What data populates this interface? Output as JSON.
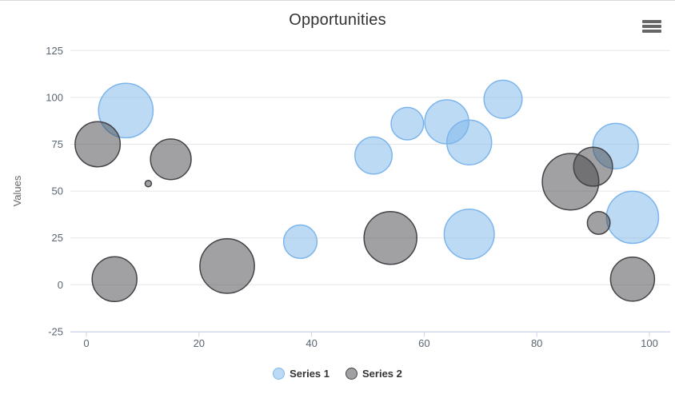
{
  "chart_data": {
    "type": "bubble",
    "title": "Opportunities",
    "xlabel": "",
    "ylabel": "Values",
    "x_ticks": [
      0,
      20,
      40,
      60,
      80,
      100
    ],
    "y_ticks": [
      -25,
      0,
      25,
      50,
      75,
      100,
      125
    ],
    "xlim": [
      -3,
      103.5
    ],
    "ylim": [
      -25,
      125
    ],
    "grid": "horizontal-gridlines-only",
    "legend_position": "bottom-center",
    "point_format": "[x, y, z] where z scales bubble area",
    "series": [
      {
        "name": "Series 1",
        "color": "#7cb5ec",
        "fill_opacity": 0.5,
        "data": [
          [
            97,
            36,
            79
          ],
          [
            94,
            74,
            60
          ],
          [
            68,
            76,
            58
          ],
          [
            64,
            87,
            56
          ],
          [
            68,
            27,
            73
          ],
          [
            74,
            99,
            42
          ],
          [
            7,
            93,
            87
          ],
          [
            51,
            69,
            40
          ],
          [
            38,
            23,
            33
          ],
          [
            57,
            86,
            31
          ]
        ]
      },
      {
        "name": "Series 2",
        "color": "#434348",
        "fill_opacity": 0.5,
        "data": [
          [
            25,
            10,
            87
          ],
          [
            2,
            75,
            59
          ],
          [
            11,
            54,
            8
          ],
          [
            86,
            55,
            93
          ],
          [
            5,
            3,
            58
          ],
          [
            90,
            63,
            44
          ],
          [
            91,
            33,
            17
          ],
          [
            97,
            3,
            56
          ],
          [
            15,
            67,
            48
          ],
          [
            54,
            25,
            81
          ]
        ]
      }
    ]
  },
  "icons": {
    "export_menu": "hamburger-menu-icon"
  },
  "colors": {
    "grid_line": "#e6e6e6",
    "axis_line": "#ccd6eb",
    "tick_label": "#5a6572",
    "axis_title": "#666666",
    "chart_title": "#333333",
    "legend_text": "#333333",
    "menu_icon": "#666666"
  }
}
